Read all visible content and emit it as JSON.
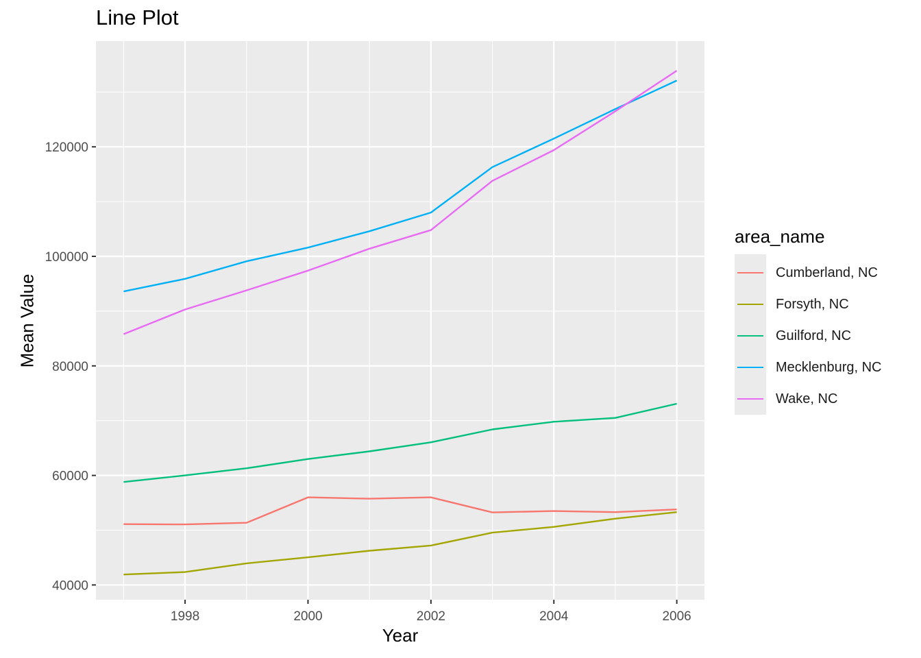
{
  "chart_data": {
    "type": "line",
    "title": "Line Plot",
    "xlabel": "Year",
    "ylabel": "Mean Value",
    "x": [
      1997,
      1998,
      1999,
      2000,
      2001,
      2002,
      2003,
      2004,
      2005,
      2006
    ],
    "x_ticks": [
      "1998",
      "2000",
      "2002",
      "2004",
      "2006"
    ],
    "y_ticks": [
      "40000",
      "60000",
      "80000",
      "100000",
      "120000"
    ],
    "xlim": [
      1996.55,
      2006.45
    ],
    "ylim": [
      37300,
      139300
    ],
    "grid": true,
    "legend_title": "area_name",
    "legend_position": "right",
    "series": [
      {
        "name": "Cumberland, NC",
        "color": "#F8766D",
        "values": [
          51100,
          51050,
          51350,
          56000,
          55750,
          56000,
          53250,
          53500,
          53300,
          53800
        ]
      },
      {
        "name": "Forsyth, NC",
        "color": "#A3A500",
        "values": [
          41900,
          42350,
          43950,
          45050,
          46250,
          47200,
          49550,
          50600,
          52100,
          53300
        ]
      },
      {
        "name": "Guilford, NC",
        "color": "#00BF7D",
        "values": [
          58800,
          60000,
          61300,
          63000,
          64400,
          66050,
          68400,
          69800,
          70500,
          73100
        ]
      },
      {
        "name": "Mecklenburg, NC",
        "color": "#00B0F6",
        "values": [
          93600,
          95900,
          99100,
          101600,
          104600,
          108000,
          116300,
          121500,
          126900,
          132100
        ]
      },
      {
        "name": "Wake, NC",
        "color": "#E76BF3",
        "values": [
          85800,
          90300,
          93800,
          97400,
          101400,
          104800,
          113800,
          119400,
          126500,
          133900
        ]
      }
    ]
  }
}
